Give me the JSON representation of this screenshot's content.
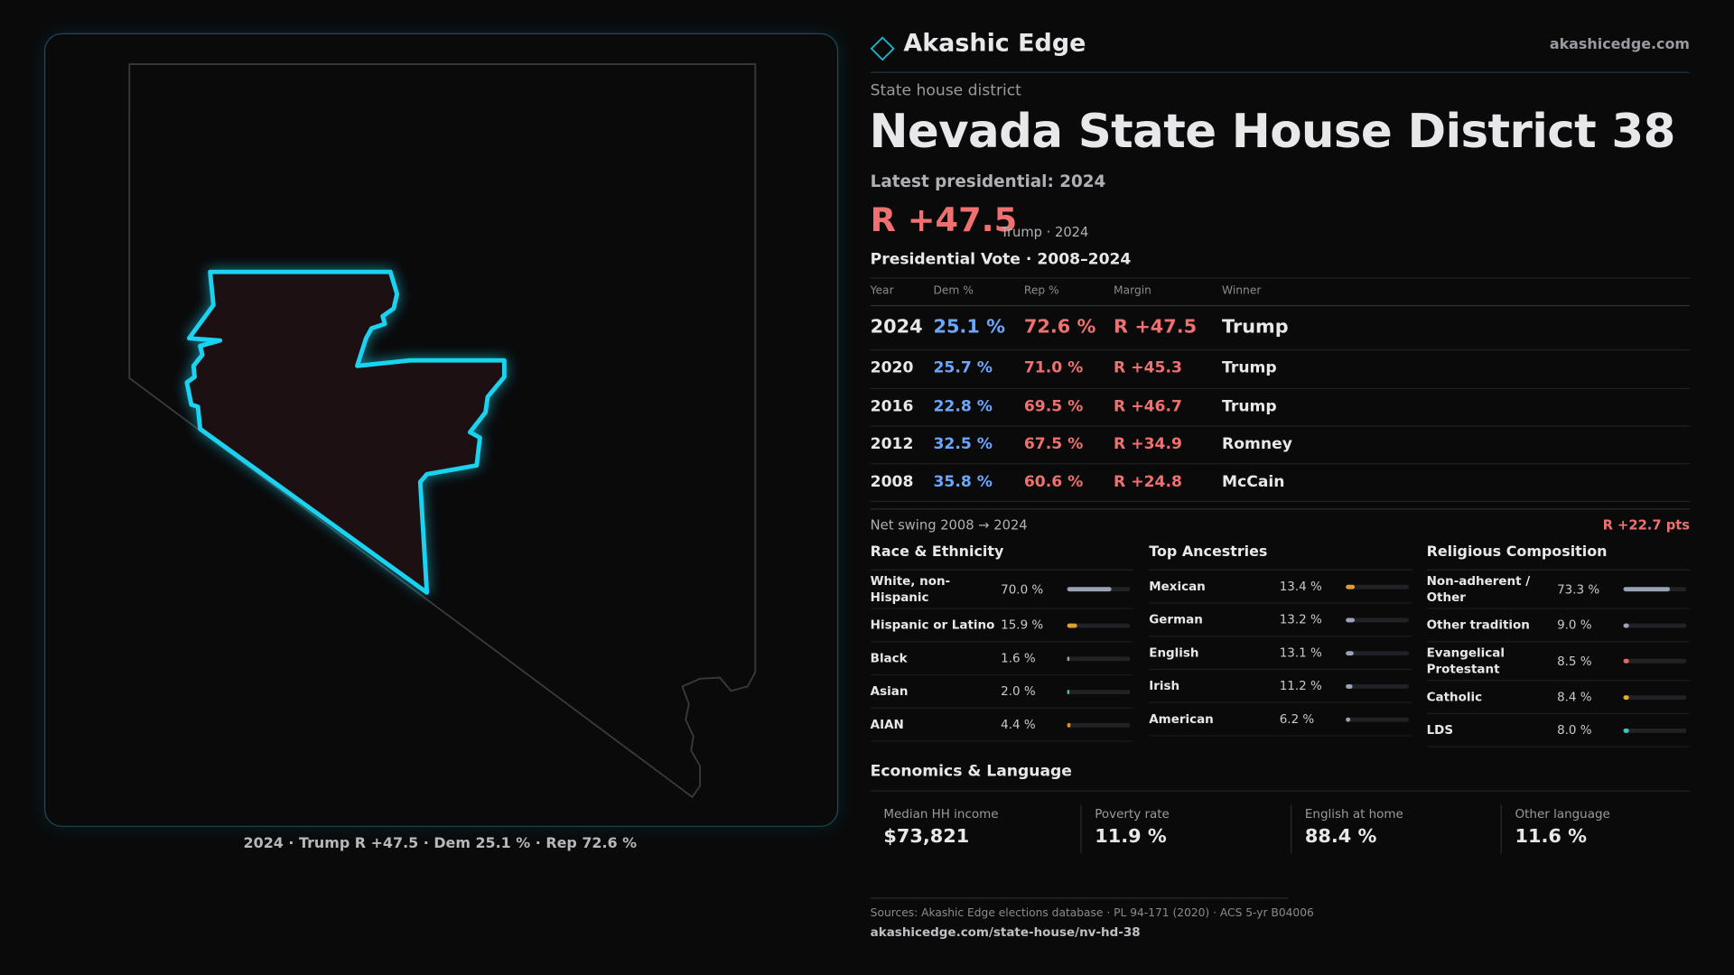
{
  "header": {
    "brand": "Akashic Edge",
    "url": "akashicedge.com"
  },
  "kicker": "State house district",
  "title": "Nevada State House District 38",
  "subtitle": "Latest presidential: 2024",
  "headline_margin": "R +47.5",
  "headline_note": "Trump · 2024",
  "map_caption": "2024 · Trump R +47.5 · Dem 25.1 % · Rep 72.6 %",
  "vote_table": {
    "title": "Presidential Vote · 2008–2024",
    "columns": [
      "Year",
      "Dem %",
      "Rep %",
      "Margin",
      "Winner"
    ],
    "rows": [
      [
        "2024",
        "25.1 %",
        "72.6 %",
        "R +47.5",
        "Trump"
      ],
      [
        "2020",
        "25.7 %",
        "71.0 %",
        "R +45.3",
        "Trump"
      ],
      [
        "2016",
        "22.8 %",
        "69.5 %",
        "R +46.7",
        "Trump"
      ],
      [
        "2012",
        "32.5 %",
        "67.5 %",
        "R +34.9",
        "Romney"
      ],
      [
        "2008",
        "35.8 %",
        "60.6 %",
        "R +24.8",
        "McCain"
      ]
    ]
  },
  "net_swing": {
    "label": "Net swing 2008 → 2024",
    "value": "R +22.7 pts"
  },
  "sections": [
    {
      "title": "Race & Ethnicity",
      "rows": [
        {
          "label": "White, non-Hispanic",
          "value": 70.0,
          "value_label": "70.0 %",
          "color": "#9aa3b5"
        },
        {
          "label": "Hispanic or Latino",
          "value": 15.9,
          "value_label": "15.9 %",
          "color": "#e0a030"
        },
        {
          "label": "Black",
          "value": 1.6,
          "value_label": "1.6 %",
          "color": "#9aa3b5"
        },
        {
          "label": "Asian",
          "value": 2.0,
          "value_label": "2.0 %",
          "color": "#4fc48a"
        },
        {
          "label": "AIAN",
          "value": 4.4,
          "value_label": "4.4 %",
          "color": "#e08a30"
        }
      ]
    },
    {
      "title": "Top Ancestries",
      "rows": [
        {
          "label": "Mexican",
          "value": 13.4,
          "value_label": "13.4 %",
          "color": "#e0a030"
        },
        {
          "label": "German",
          "value": 13.2,
          "value_label": "13.2 %",
          "color": "#9aa3b5"
        },
        {
          "label": "English",
          "value": 13.1,
          "value_label": "13.1 %",
          "color": "#9aa3b5"
        },
        {
          "label": "Irish",
          "value": 11.2,
          "value_label": "11.2 %",
          "color": "#9aa3b5"
        },
        {
          "label": "American",
          "value": 6.2,
          "value_label": "6.2 %",
          "color": "#9aa3b5"
        }
      ]
    },
    {
      "title": "Religious Composition",
      "rows": [
        {
          "label": "Non-adherent / Other",
          "value": 73.3,
          "value_label": "73.3 %",
          "color": "#9aa3b5"
        },
        {
          "label": "Other tradition",
          "value": 9.0,
          "value_label": "9.0 %",
          "color": "#9aa3b5"
        },
        {
          "label": "Evangelical Protestant",
          "value": 8.5,
          "value_label": "8.5 %",
          "color": "#e06a6a"
        },
        {
          "label": "Catholic",
          "value": 8.4,
          "value_label": "8.4 %",
          "color": "#e0b030"
        },
        {
          "label": "LDS",
          "value": 8.0,
          "value_label": "8.0 %",
          "color": "#3fc4c4"
        }
      ]
    }
  ],
  "economics": {
    "title": "Economics & Language",
    "items": [
      {
        "label": "Median HH income",
        "value": "$73,821"
      },
      {
        "label": "Poverty rate",
        "value": "11.9 %"
      },
      {
        "label": "English at home",
        "value": "88.4 %"
      },
      {
        "label": "Other language",
        "value": "11.6 %"
      }
    ]
  },
  "footer": {
    "sources": "Sources: Akashic Edge elections database · PL 94-171 (2020) · ACS 5-yr B04006",
    "url": "akashicedge.com/state-house/nv-hd-38"
  }
}
